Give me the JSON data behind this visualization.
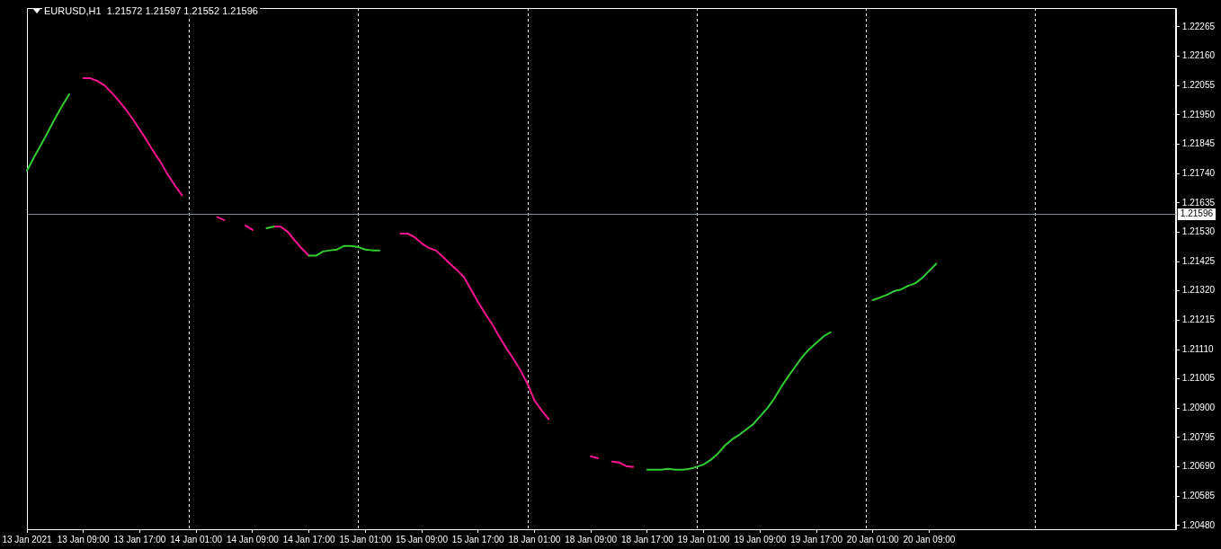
{
  "chart_data": {
    "type": "line",
    "title": "EURUSD,H1  1.21572 1.21597 1.21552 1.21596",
    "categories": [
      "13 Jan 2021",
      null,
      null,
      null,
      null,
      null,
      null,
      null,
      "13 Jan 09:00",
      null,
      null,
      null,
      null,
      null,
      null,
      null,
      "13 Jan 17:00",
      null,
      null,
      null,
      null,
      null,
      null,
      null,
      "14 Jan 01:00",
      null,
      null,
      null,
      null,
      null,
      null,
      null,
      "14 Jan 09:00",
      null,
      null,
      null,
      null,
      null,
      null,
      null,
      "14 Jan 17:00",
      null,
      null,
      null,
      null,
      null,
      null,
      null,
      "15 Jan 01:00",
      null,
      null,
      null,
      null,
      null,
      null,
      null,
      "15 Jan 09:00",
      null,
      null,
      null,
      null,
      null,
      null,
      null,
      "15 Jan 17:00",
      null,
      null,
      null,
      null,
      null,
      null,
      null,
      "18 Jan 01:00",
      null,
      null,
      null,
      null,
      null,
      null,
      null,
      "18 Jan 09:00",
      null,
      null,
      null,
      null,
      null,
      null,
      null,
      "18 Jan 17:00",
      null,
      null,
      null,
      null,
      null,
      null,
      null,
      "19 Jan 01:00",
      null,
      null,
      null,
      null,
      null,
      null,
      null,
      "19 Jan 09:00",
      null,
      null,
      null,
      null,
      null,
      null,
      null,
      "19 Jan 17:00",
      null,
      null,
      null,
      null,
      null,
      null,
      null,
      "20 Jan 01:00",
      null,
      null,
      null,
      null,
      null,
      null,
      null,
      "20 Jan 09:00",
      null,
      null,
      null,
      null,
      null,
      null,
      null,
      null,
      null,
      null,
      null,
      null,
      null,
      null,
      null,
      null,
      null,
      null,
      null,
      null,
      null,
      null,
      null,
      null,
      null,
      null,
      null,
      null,
      null,
      null,
      null,
      null,
      null,
      null,
      null
    ],
    "series": [
      {
        "color": "#32cd32",
        "values": [
          1.2175,
          1.21798,
          1.21843,
          1.2189,
          1.21938,
          1.21982,
          1.22024,
          null,
          null,
          null,
          null,
          null,
          null,
          null,
          null,
          null,
          null,
          null,
          null,
          null,
          null,
          null,
          null,
          null,
          null,
          null,
          null,
          null,
          null,
          null,
          null,
          null,
          null,
          null,
          1.21544,
          1.2155,
          null,
          null,
          null,
          null,
          1.21446,
          1.21446,
          1.21461,
          1.21465,
          1.21468,
          1.21481,
          1.21481,
          1.21477,
          1.21468,
          1.21465,
          1.21465,
          null,
          null,
          null,
          null,
          null,
          null,
          null,
          null,
          null,
          null,
          null,
          null,
          null,
          null,
          null,
          null,
          null,
          null,
          null,
          null,
          null,
          null,
          null,
          null,
          null,
          null,
          null,
          null,
          null,
          null,
          null,
          null,
          null,
          null,
          null,
          null,
          null,
          1.2068,
          1.2068,
          1.2068,
          1.20683,
          1.2068,
          1.2068,
          1.20683,
          1.2069,
          1.20699,
          1.20715,
          1.20737,
          1.20766,
          1.20788,
          1.20804,
          1.20823,
          1.20842,
          1.20871,
          1.20899,
          1.20934,
          1.20976,
          1.21014,
          1.21049,
          1.21084,
          1.21112,
          1.21134,
          1.21157,
          1.21172,
          null,
          null,
          null,
          null,
          null,
          1.21287,
          1.21296,
          1.21306,
          1.21319,
          1.21325,
          1.21338,
          1.21347,
          1.21366,
          1.21392,
          1.21417,
          null,
          null,
          null,
          null,
          null,
          null,
          null,
          null,
          null,
          null,
          null,
          null,
          null,
          null,
          null,
          null,
          null,
          null,
          null,
          null,
          null,
          null,
          null,
          null,
          null,
          null,
          null,
          null,
          null,
          null,
          null,
          null,
          null,
          null
        ]
      },
      {
        "color": "#ff1493",
        "values": [
          null,
          null,
          null,
          null,
          null,
          null,
          null,
          null,
          1.22081,
          1.22081,
          1.22071,
          1.22055,
          1.2203,
          1.22001,
          1.2197,
          1.21935,
          1.21897,
          1.21858,
          1.21817,
          1.21779,
          1.21735,
          1.21697,
          1.21662,
          null,
          null,
          null,
          null,
          1.21584,
          1.21573,
          null,
          null,
          1.21554,
          1.21538,
          null,
          null,
          1.2155,
          1.2155,
          1.21531,
          1.215,
          1.21471,
          1.21446,
          null,
          null,
          null,
          null,
          null,
          null,
          null,
          null,
          null,
          null,
          null,
          null,
          1.21525,
          1.21525,
          1.21512,
          1.2149,
          1.21474,
          1.21465,
          1.21442,
          1.21417,
          1.21395,
          1.21369,
          1.21325,
          1.2128,
          1.21239,
          1.21201,
          1.21157,
          1.21115,
          1.21077,
          1.21036,
          1.20988,
          1.20928,
          1.20893,
          1.20861,
          null,
          null,
          null,
          null,
          null,
          1.20728,
          1.20721,
          null,
          1.20709,
          1.20706,
          1.20693,
          1.2069,
          null,
          null,
          null,
          null,
          null,
          null,
          null,
          null,
          null,
          null,
          null,
          null,
          null,
          null,
          null,
          null,
          null,
          null,
          null,
          null,
          null,
          null,
          null,
          null,
          null,
          null,
          null,
          null,
          null,
          null,
          null,
          null,
          null,
          null,
          null,
          null,
          null,
          null,
          null,
          null,
          null,
          null,
          null,
          null,
          null,
          null,
          null,
          null,
          null,
          null,
          null,
          null,
          null,
          null,
          null,
          null,
          null,
          null,
          null,
          null,
          null,
          null,
          null,
          null,
          null,
          null,
          null,
          null,
          null,
          null,
          null,
          null,
          null,
          null,
          null,
          null,
          null
        ]
      }
    ],
    "ylim": [
      1.20467,
      1.22332
    ],
    "yticks": [
      1.22265,
      {
        "value": 1.2216,
        "label": "1.22160"
      },
      1.22055,
      {
        "value": 1.2195,
        "label": "1.21950"
      },
      1.21845,
      {
        "value": 1.2174,
        "label": "1.21740"
      },
      1.21635,
      {
        "value": 1.2153,
        "label": "1.21530"
      },
      1.21425,
      {
        "value": 1.2132,
        "label": "1.21320"
      },
      1.21215,
      {
        "value": 1.2111,
        "label": "1.21110"
      },
      1.21005,
      {
        "value": 1.209,
        "label": "1.20900"
      },
      1.20795,
      {
        "value": 1.2069,
        "label": "1.20690"
      },
      1.20585,
      {
        "value": 1.2048,
        "label": "1.20480"
      }
    ],
    "ref_lines": [
      {
        "axis": "y",
        "value": 1.21596,
        "label": "1.21596",
        "color": "#778899"
      }
    ]
  }
}
